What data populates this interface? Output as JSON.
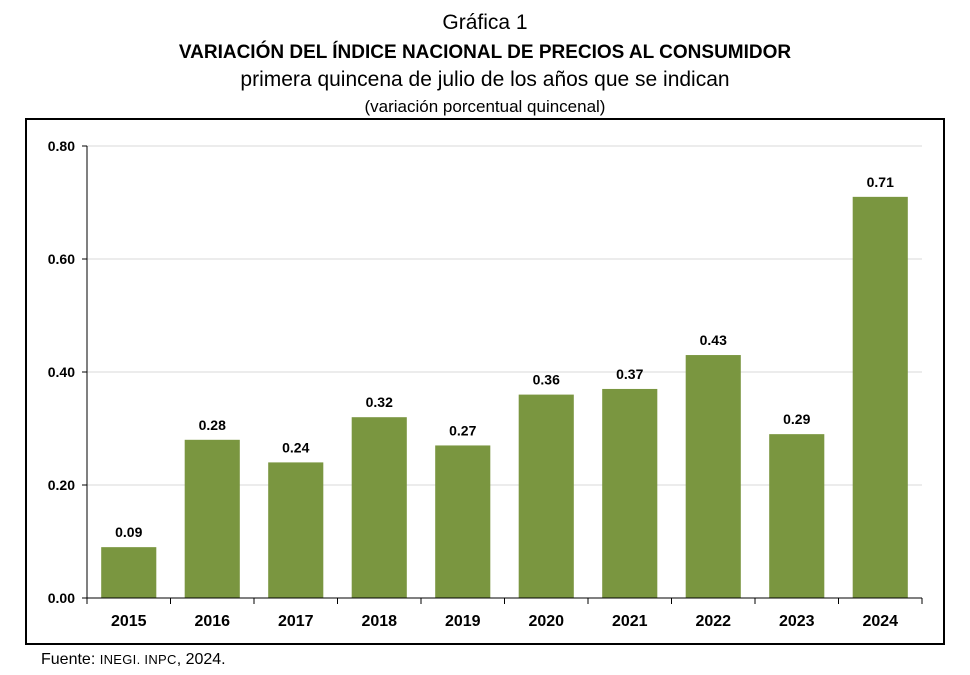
{
  "header": {
    "chart_number": "Gráfica 1",
    "title": "VARIACIÓN DEL ÍNDICE NACIONAL DE PRECIOS AL CONSUMIDOR",
    "subtitle": "primera quincena de julio de los años que se indican",
    "units": "(variación porcentual quincenal)"
  },
  "footer": {
    "source_prefix": "Fuente: ",
    "source_org": "INEGI. INPC",
    "source_suffix": ", 2024."
  },
  "chart_data": {
    "type": "bar",
    "title": "VARIACIÓN DEL ÍNDICE NACIONAL DE PRECIOS AL CONSUMIDOR",
    "subtitle": "primera quincena de julio de los años que se indican",
    "ylabel": "(variación porcentual quincenal)",
    "xlabel": "",
    "categories": [
      "2015",
      "2016",
      "2017",
      "2018",
      "2019",
      "2020",
      "2021",
      "2022",
      "2023",
      "2024"
    ],
    "values": [
      0.09,
      0.28,
      0.24,
      0.32,
      0.27,
      0.36,
      0.37,
      0.43,
      0.29,
      0.71
    ],
    "value_labels": [
      "0.09",
      "0.28",
      "0.24",
      "0.32",
      "0.27",
      "0.36",
      "0.37",
      "0.43",
      "0.29",
      "0.71"
    ],
    "ylim": [
      0,
      0.8
    ],
    "yticks": [
      0,
      0.2,
      0.4,
      0.6,
      0.8
    ],
    "ytick_labels": [
      "0.00",
      "0.20",
      "0.40",
      "0.60",
      "0.80"
    ],
    "grid": true,
    "legend": "none",
    "bar_color": "#7a9640",
    "grid_color": "#d9d9d9"
  }
}
